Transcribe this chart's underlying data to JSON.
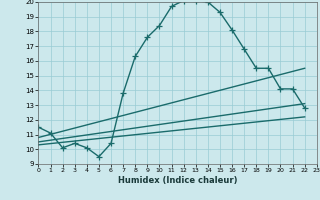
{
  "xlabel": "Humidex (Indice chaleur)",
  "bg_color": "#cce8ec",
  "grid_color": "#99ccd4",
  "line_color": "#1a6b6b",
  "xlim": [
    0,
    23
  ],
  "ylim": [
    9,
    20
  ],
  "xticks": [
    0,
    1,
    2,
    3,
    4,
    5,
    6,
    7,
    8,
    9,
    10,
    11,
    12,
    13,
    14,
    15,
    16,
    17,
    18,
    19,
    20,
    21,
    22,
    23
  ],
  "yticks": [
    9,
    10,
    11,
    12,
    13,
    14,
    15,
    16,
    17,
    18,
    19,
    20
  ],
  "series": [
    {
      "x": [
        0,
        1,
        2,
        3,
        4,
        5,
        6,
        7,
        8,
        9,
        10,
        11,
        12,
        13,
        14,
        15,
        16,
        17,
        18,
        19,
        20,
        21,
        22
      ],
      "y": [
        11.5,
        11.1,
        10.1,
        10.4,
        10.1,
        9.5,
        10.4,
        13.8,
        16.3,
        17.6,
        18.4,
        19.7,
        20.1,
        20.1,
        20.0,
        19.3,
        18.1,
        16.8,
        15.5,
        15.5,
        14.1,
        14.1,
        12.8
      ],
      "style": "-",
      "marker": "+",
      "linewidth": 1.0,
      "markersize": 4,
      "dotted": false
    },
    {
      "x": [
        0,
        22
      ],
      "y": [
        10.8,
        15.5
      ],
      "style": "-",
      "marker": null,
      "linewidth": 1.0,
      "dotted": false
    },
    {
      "x": [
        0,
        22
      ],
      "y": [
        10.5,
        13.1
      ],
      "style": "-",
      "marker": null,
      "linewidth": 1.0,
      "dotted": false
    },
    {
      "x": [
        0,
        22
      ],
      "y": [
        10.3,
        12.2
      ],
      "style": "-",
      "marker": null,
      "linewidth": 1.0,
      "dotted": false
    }
  ]
}
